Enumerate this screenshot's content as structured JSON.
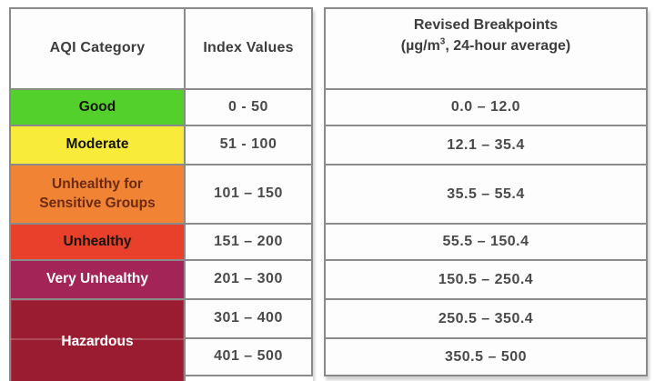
{
  "colors": {
    "good_bg": "#53d02b",
    "moderate_bg": "#f8eb3a",
    "usg_bg": "#f08434",
    "unhealthy_bg": "#e9402c",
    "very_unhealthy_bg": "#a32557",
    "hazardous_bg": "#9a1c30",
    "grid_border": "#8a8a8a",
    "header_text": "#3d3d3d",
    "value_text": "#4a4a4a",
    "usg_text": "#6e2a10",
    "light_text": "#ffffff"
  },
  "aqi_table": {
    "category_header": "AQI Category",
    "index_header": "Index Values",
    "rows": [
      {
        "category": "Good",
        "index": "0 - 50"
      },
      {
        "category": "Moderate",
        "index": "51 - 100"
      },
      {
        "category": "Unhealthy for Sensitive Groups",
        "index": "101 – 150"
      },
      {
        "category": "Unhealthy",
        "index": "151 – 200"
      },
      {
        "category": "Very Unhealthy",
        "index": "201 – 300"
      },
      {
        "category": "Hazardous",
        "index_spans": [
          "301 – 400",
          "401 – 500"
        ]
      }
    ]
  },
  "breakpoints_table": {
    "header_title": "Revised Breakpoints",
    "header_unit_prefix": "(µg/m",
    "header_unit_sup": "3",
    "header_unit_suffix": ", 24-hour average)",
    "values": [
      "0.0 – 12.0",
      "12.1 – 35.4",
      "35.5 – 55.4",
      "55.5 – 150.4",
      "150.5 – 250.4",
      "250.5 – 350.4",
      "350.5 – 500"
    ]
  }
}
